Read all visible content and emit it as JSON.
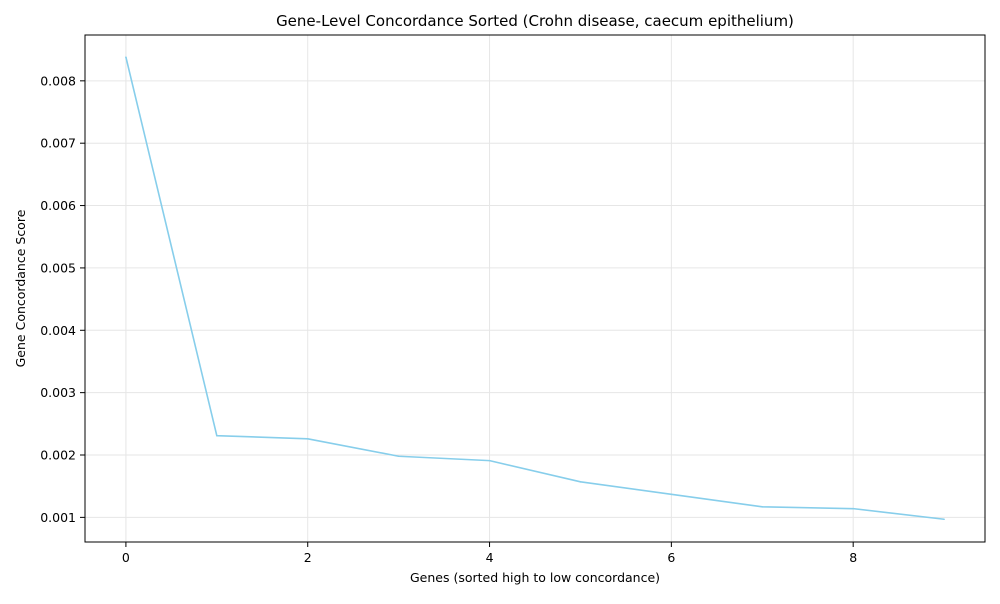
{
  "chart_data": {
    "type": "line",
    "title": "Gene-Level Concordance Sorted (Crohn disease, caecum epithelium)",
    "xlabel": "Genes (sorted high to low concordance)",
    "ylabel": "Gene Concordance Score",
    "x": [
      0,
      1,
      2,
      3,
      4,
      5,
      6,
      7,
      8,
      9
    ],
    "series": [
      {
        "values": [
          0.00838,
          0.00231,
          0.00226,
          0.00198,
          0.00191,
          0.00157,
          0.00137,
          0.00117,
          0.00114,
          0.00097
        ],
        "color": "#87ceeb"
      }
    ],
    "xlim": [
      -0.45,
      9.45
    ],
    "ylim": [
      0.000605,
      0.008735
    ],
    "xticks": [
      0,
      2,
      4,
      6,
      8
    ],
    "xtick_labels": [
      "0",
      "2",
      "4",
      "6",
      "8"
    ],
    "yticks": [
      0.001,
      0.002,
      0.003,
      0.004,
      0.005,
      0.006,
      0.007,
      0.008
    ],
    "ytick_labels": [
      "0.001",
      "0.002",
      "0.003",
      "0.004",
      "0.005",
      "0.006",
      "0.007",
      "0.008"
    ],
    "grid": true,
    "legend": false
  }
}
